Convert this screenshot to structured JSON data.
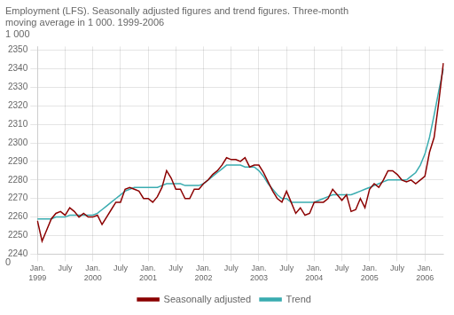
{
  "chart_data": {
    "type": "line",
    "title": [
      "Employment (LFS). Seasonally adjusted figures and trend figures. Three-month",
      "moving average in 1 000. 1999-2006"
    ],
    "ylabel": "1 000",
    "annotations": [
      {
        "text": "0"
      }
    ],
    "categories": [
      "Jan.\n1999",
      null,
      null,
      null,
      null,
      null,
      "July",
      null,
      null,
      null,
      null,
      null,
      "Jan.\n2000",
      null,
      null,
      null,
      null,
      null,
      "July",
      null,
      null,
      null,
      null,
      null,
      "Jan.\n2001",
      null,
      null,
      null,
      null,
      null,
      "July",
      null,
      null,
      null,
      null,
      null,
      "Jan.\n2002",
      null,
      null,
      null,
      null,
      null,
      "July",
      null,
      null,
      null,
      null,
      null,
      "Jan.\n2003",
      null,
      null,
      null,
      null,
      null,
      "July",
      null,
      null,
      null,
      null,
      null,
      "Jan.\n2004",
      null,
      null,
      null,
      null,
      null,
      "July",
      null,
      null,
      null,
      null,
      null,
      "Jan.\n2005",
      null,
      null,
      null,
      null,
      null,
      "July",
      null,
      null,
      null,
      null,
      null,
      "Jan.\n2006",
      null,
      null,
      null,
      null
    ],
    "series": [
      {
        "name": "Seasonally adjusted",
        "color": "#8b0000",
        "values": [
          2258,
          2247,
          2253,
          2259,
          2262,
          2263,
          2261,
          2265,
          2263,
          2260,
          2262,
          2260,
          2260,
          2261,
          2256,
          2260,
          2264,
          2268,
          2268,
          2275,
          2276,
          2275,
          2274,
          2270,
          2270,
          2268,
          2271,
          2276,
          2285,
          2281,
          2275,
          2275,
          2270,
          2270,
          2275,
          2275,
          2278,
          2280,
          2283,
          2285,
          2288,
          2292,
          2291,
          2291,
          2290,
          2292,
          2287,
          2288,
          2288,
          2284,
          2279,
          2274,
          2270,
          2268,
          2274,
          2268,
          2262,
          2265,
          2261,
          2262,
          2268,
          2268,
          2268,
          2270,
          2275,
          2272,
          2269,
          2272,
          2263,
          2264,
          2270,
          2265,
          2275,
          2278,
          2276,
          2280,
          2285,
          2285,
          2283,
          2280,
          2279,
          2280,
          2278,
          2280,
          2282,
          2295,
          2303,
          2322,
          2343
        ]
      },
      {
        "name": "Trend",
        "color": "#3aacb0",
        "values": [
          2259,
          2259,
          2259,
          2259,
          2260,
          2260,
          2260,
          2261,
          2261,
          2261,
          2261,
          2261,
          2261,
          2262,
          2264,
          2266,
          2268,
          2270,
          2272,
          2274,
          2275,
          2276,
          2276,
          2276,
          2276,
          2276,
          2276,
          2277,
          2278,
          2278,
          2278,
          2278,
          2277,
          2277,
          2277,
          2277,
          2278,
          2280,
          2282,
          2284,
          2286,
          2288,
          2288,
          2288,
          2288,
          2287,
          2287,
          2287,
          2285,
          2282,
          2278,
          2275,
          2272,
          2270,
          2270,
          2268,
          2268,
          2268,
          2268,
          2268,
          2268,
          2269,
          2270,
          2271,
          2272,
          2272,
          2272,
          2272,
          2272,
          2273,
          2274,
          2275,
          2276,
          2277,
          2278,
          2279,
          2280,
          2280,
          2280,
          2280,
          2280,
          2282,
          2284,
          2288,
          2294,
          2303,
          2315,
          2328,
          2340
        ]
      }
    ],
    "ylim": [
      2240,
      2352
    ],
    "yticks": [
      2240,
      2250,
      2260,
      2270,
      2280,
      2290,
      2300,
      2310,
      2320,
      2330,
      2340,
      2350
    ],
    "grid": true,
    "legend": "bottom"
  }
}
